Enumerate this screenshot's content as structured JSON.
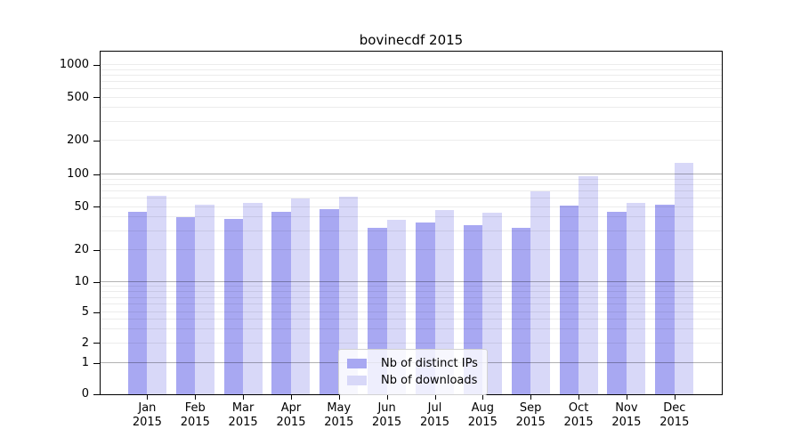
{
  "chart_data": {
    "type": "bar",
    "title": "bovinecdf 2015",
    "scale": "symlog",
    "grid": true,
    "categories": [
      "Jan",
      "Feb",
      "Mar",
      "Apr",
      "May",
      "Jun",
      "Jul",
      "Aug",
      "Sep",
      "Oct",
      "Nov",
      "Dec"
    ],
    "category_year": "2015",
    "series": [
      {
        "name": "Nb of distinct IPs",
        "color": "#a8a8f2",
        "values": [
          45,
          40,
          39,
          45,
          48,
          32,
          36,
          34,
          32,
          51,
          45,
          52
        ]
      },
      {
        "name": "Nb of downloads",
        "color": "#d8d8f8",
        "values": [
          63,
          52,
          55,
          60,
          62,
          38,
          47,
          44,
          70,
          97,
          55,
          126
        ]
      }
    ],
    "yticks": [
      0,
      1,
      2,
      5,
      10,
      20,
      50,
      100,
      200,
      500,
      1000
    ],
    "ylim": [
      0,
      1300
    ],
    "legend_position": "lower center",
    "colors": {
      "major_gridline": "#b0b0b0",
      "minor_gridline": "#ececec",
      "axis": "#000000",
      "background": "#ffffff"
    }
  }
}
